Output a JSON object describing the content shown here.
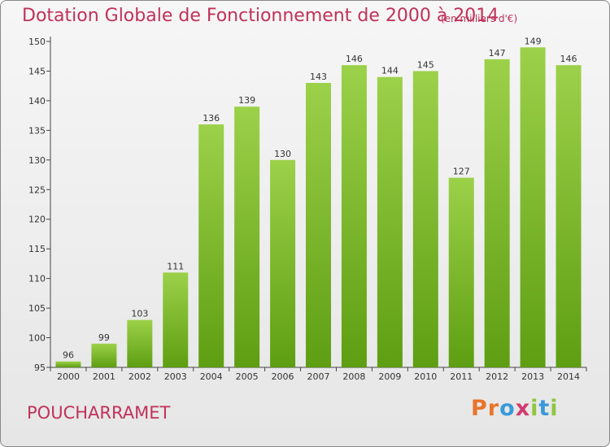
{
  "header": {
    "title": "Dotation Globale de Fonctionnement de 2000 à 2014",
    "subtitle": "(en milliers d'€)"
  },
  "footer": {
    "commune": "POUCHARRAMET",
    "logo_letters": [
      "P",
      "r",
      "o",
      "x",
      "i",
      "t",
      "i"
    ],
    "logo_colors": [
      "#e8752a",
      "#e8752a",
      "#3a9ad9",
      "#d23a6e",
      "#8ec63f",
      "#3a9ad9",
      "#8ec63f"
    ]
  },
  "colors": {
    "bar_top": "#9cd14a",
    "bar_bottom": "#5e9e12",
    "accent": "#c0325a"
  },
  "chart_data": {
    "type": "bar",
    "title": "Dotation Globale de Fonctionnement de 2000 à 2014",
    "subtitle": "(en milliers d'€)",
    "xlabel": "",
    "ylabel": "",
    "categories": [
      "2000",
      "2001",
      "2002",
      "2003",
      "2004",
      "2005",
      "2006",
      "2007",
      "2008",
      "2009",
      "2010",
      "2011",
      "2012",
      "2013",
      "2014"
    ],
    "values": [
      96,
      99,
      103,
      111,
      136,
      139,
      130,
      143,
      146,
      144,
      145,
      127,
      147,
      149,
      146
    ],
    "ylim": [
      95,
      150
    ],
    "yticks": [
      95,
      100,
      105,
      110,
      115,
      120,
      125,
      130,
      135,
      140,
      145,
      150
    ],
    "grid": false,
    "legend": "none"
  }
}
